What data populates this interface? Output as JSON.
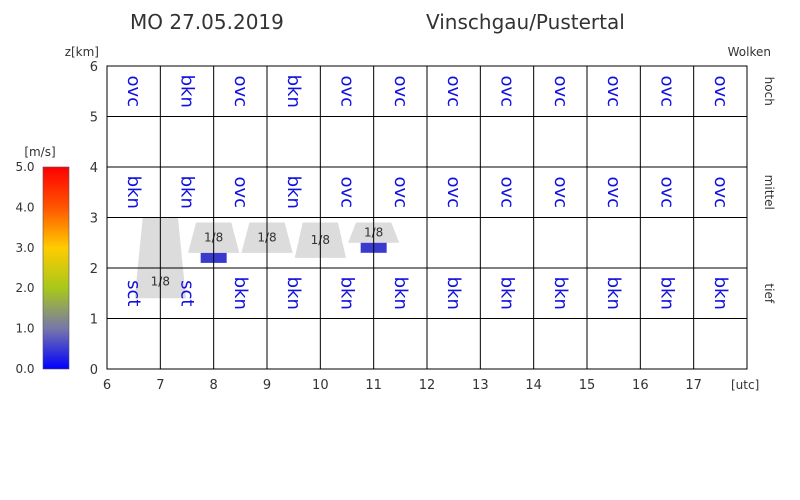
{
  "header": {
    "date": "MO 27.05.2019",
    "region": "Vinschgau/Pustertal"
  },
  "chart_data": {
    "type": "table",
    "x": [
      6,
      7,
      8,
      9,
      10,
      11,
      12,
      13,
      14,
      15,
      16,
      17
    ],
    "xunit": "[utc]",
    "ylabel": "z[km]",
    "ylim": [
      0,
      6
    ],
    "yticks": [
      0,
      1,
      2,
      3,
      4,
      5,
      6
    ],
    "legend_title": "Wolken",
    "layers": [
      "hoch",
      "mittel",
      "tief"
    ],
    "clouds": {
      "hoch": [
        "ovc",
        "bkn",
        "ovc",
        "bkn",
        "ovc",
        "ovc",
        "ovc",
        "ovc",
        "ovc",
        "ovc",
        "ovc",
        "ovc"
      ],
      "mittel": [
        "bkn",
        "bkn",
        "ovc",
        "bkn",
        "ovc",
        "ovc",
        "ovc",
        "ovc",
        "ovc",
        "ovc",
        "ovc",
        "ovc"
      ],
      "tief": [
        "sct",
        "sct",
        "bkn",
        "bkn",
        "bkn",
        "bkn",
        "bkn",
        "bkn",
        "bkn",
        "bkn",
        "bkn",
        "bkn"
      ]
    },
    "convective": [
      {
        "time": 7,
        "base_km": 1.4,
        "top_km": 3.0,
        "cover": "1/8",
        "bar_km": null
      },
      {
        "time": 8,
        "base_km": 2.3,
        "top_km": 2.9,
        "cover": "1/8",
        "bar_km": 2.2
      },
      {
        "time": 9,
        "base_km": 2.3,
        "top_km": 2.9,
        "cover": "1/8",
        "bar_km": null
      },
      {
        "time": 10,
        "base_km": 2.2,
        "top_km": 2.9,
        "cover": "1/8",
        "bar_km": null
      },
      {
        "time": 11,
        "base_km": 2.5,
        "top_km": 2.9,
        "cover": "1/8",
        "bar_km": 2.4
      }
    ],
    "colorbar": {
      "unit": "[m/s]",
      "ticks": [
        "0.0",
        "1.0",
        "2.0",
        "3.0",
        "4.0",
        "5.0"
      ],
      "range": [
        0,
        5
      ],
      "colors": [
        "#0000ff",
        "#7777aa",
        "#a8c81a",
        "#ffcc00",
        "#ff5500",
        "#ff0000"
      ]
    }
  }
}
